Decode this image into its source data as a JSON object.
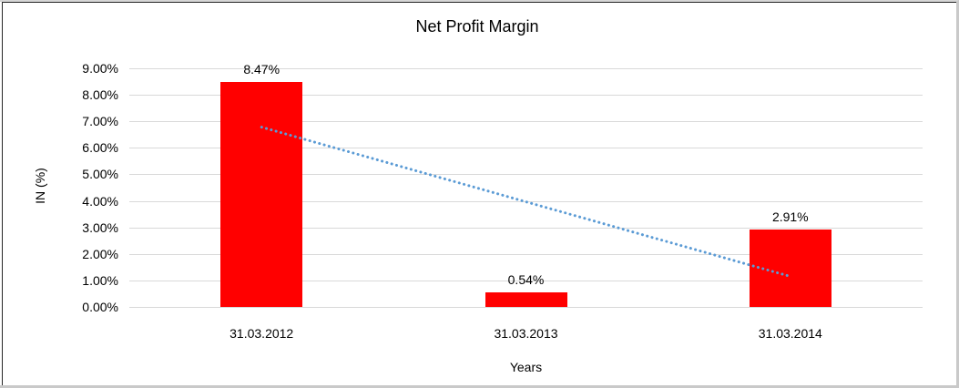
{
  "chart_data": {
    "type": "bar",
    "title": "Net Profit Margin",
    "xlabel": "Years",
    "ylabel": "IN (%)",
    "categories": [
      "31.03.2012",
      "31.03.2013",
      "31.03.2014"
    ],
    "values": [
      8.47,
      0.54,
      2.91
    ],
    "data_labels": [
      "8.47%",
      "0.54%",
      "2.91%"
    ],
    "y_ticks": [
      "0.00%",
      "1.00%",
      "2.00%",
      "3.00%",
      "4.00%",
      "5.00%",
      "6.00%",
      "7.00%",
      "8.00%",
      "9.00%"
    ],
    "ylim": [
      0,
      9
    ],
    "grid": "horizontal",
    "legend": "none",
    "bar_color": "#ff0000",
    "gridline_color": "#d9d9d9",
    "trendline": {
      "type": "linear",
      "style": "dotted",
      "color": "#5b9bd5",
      "points": [
        {
          "category_index": 0,
          "value": 6.78
        },
        {
          "category_index": 2,
          "value": 1.15
        }
      ]
    }
  }
}
